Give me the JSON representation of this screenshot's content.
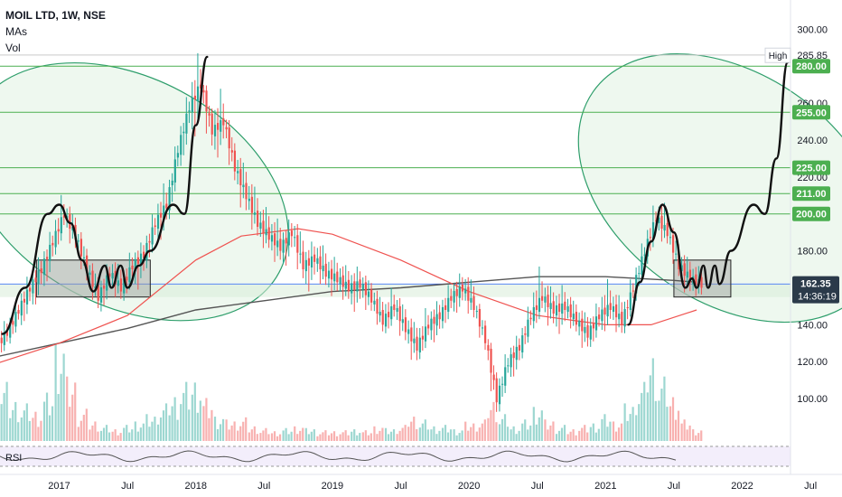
{
  "legend": {
    "symbol": "MOIL LTD, 1W, NSE",
    "indicator_mas": "MAs",
    "indicator_vol": "Vol"
  },
  "rsi_label": "RSI",
  "colors": {
    "up": "#26a69a",
    "down": "#ef5350",
    "ellipse_fill": "#e8f5e9",
    "ellipse_stroke": "#2e9e6b",
    "hline": "#4caf50",
    "ma_slow": "#555555",
    "ma_fast": "#ef5350",
    "blue_line": "#2962ff",
    "box_fill": "#9e9e9e",
    "price_tag_bg": "#2b3a4a"
  },
  "chart_data": {
    "type": "candlestick",
    "y_axis": {
      "range": [
        80,
        307
      ],
      "ticks": [
        "300.00",
        "260.00",
        "240.00",
        "220.00",
        "180.00",
        "140.00",
        "120.00",
        "100.00"
      ]
    },
    "x_axis": {
      "ticks": [
        "2017",
        "Jul",
        "2018",
        "Jul",
        "2019",
        "Jul",
        "2020",
        "Jul",
        "2021",
        "Jul",
        "2022",
        "Jul"
      ],
      "tick_dates": [
        "2017-01",
        "2017-07",
        "2018-01",
        "2018-07",
        "2019-01",
        "2019-07",
        "2020-01",
        "2020-07",
        "2021-01",
        "2021-07",
        "2022-01",
        "2022-07"
      ]
    },
    "horizontal_levels": [
      {
        "value": 280,
        "label": "280.00"
      },
      {
        "value": 255,
        "label": "255.00"
      },
      {
        "value": 225,
        "label": "225.00"
      },
      {
        "value": 211,
        "label": "211.00"
      },
      {
        "value": 200,
        "label": "200.00"
      }
    ],
    "high_marker": {
      "label": "High",
      "value": "285.85"
    },
    "last_price": {
      "value": "162.35",
      "countdown": "14:36:19"
    },
    "blue_level": 162,
    "consolidation_boxes": [
      {
        "date_start": "2016-11",
        "date_end": "2017-09",
        "low": 155,
        "high": 175
      },
      {
        "date_start": "2021-07",
        "date_end": "2021-12",
        "low": 155,
        "high": 175
      }
    ],
    "ellipses": [
      {
        "date_center": "2017-07",
        "date_half_width_months": 10,
        "price_center": 212,
        "price_half_height": 93,
        "tilt_deg": -62
      },
      {
        "date_center": "2021-12",
        "date_half_width_months": 10,
        "price_center": 214,
        "price_half_height": 91,
        "tilt_deg": -55
      }
    ],
    "pattern_paths": [
      [
        [
          "2016-08",
          135
        ],
        [
          "2016-10",
          160
        ],
        [
          "2016-12",
          200
        ],
        [
          "2017-01",
          205
        ],
        [
          "2017-02",
          195
        ],
        [
          "2017-03",
          175
        ],
        [
          "2017-04",
          158
        ],
        [
          "2017-05",
          172
        ],
        [
          "2017-05.6",
          160
        ],
        [
          "2017-06.4",
          172
        ],
        [
          "2017-07",
          160
        ],
        [
          "2017-08",
          172
        ],
        [
          "2017-09",
          180
        ],
        [
          "2017-11",
          205
        ],
        [
          "2017-12",
          200
        ],
        [
          "2018-01",
          248
        ],
        [
          "2018-02",
          285
        ]
      ],
      [
        [
          "2021-03",
          140
        ],
        [
          "2021-04",
          163
        ],
        [
          "2021-05",
          185
        ],
        [
          "2021-06",
          205
        ],
        [
          "2021-07",
          190
        ],
        [
          "2021-08",
          160
        ],
        [
          "2021-08.6",
          165
        ],
        [
          "2021-09",
          160
        ],
        [
          "2021-09.6",
          172
        ],
        [
          "2021-10",
          160
        ],
        [
          "2021-10.6",
          172
        ],
        [
          "2021-11",
          162
        ],
        [
          "2021-12",
          180
        ],
        [
          "2022-02",
          205
        ],
        [
          "2022-03",
          200
        ],
        [
          "2022-04",
          230
        ],
        [
          "2022-05",
          282
        ]
      ]
    ],
    "ma_slow": [
      [
        "2016-07",
        122
      ],
      [
        "2017-01",
        130
      ],
      [
        "2017-07",
        138
      ],
      [
        "2018-01",
        148
      ],
      [
        "2018-07",
        153
      ],
      [
        "2019-01",
        158
      ],
      [
        "2019-07",
        160
      ],
      [
        "2020-01",
        163
      ],
      [
        "2020-07",
        166
      ],
      [
        "2021-01",
        166
      ],
      [
        "2021-07",
        164
      ],
      [
        "2021-09",
        163
      ]
    ],
    "ma_fast": [
      [
        "2016-07",
        118
      ],
      [
        "2017-01",
        130
      ],
      [
        "2017-07",
        145
      ],
      [
        "2018-01",
        175
      ],
      [
        "2018-05",
        188
      ],
      [
        "2018-10",
        192
      ],
      [
        "2019-01",
        189
      ],
      [
        "2019-07",
        175
      ],
      [
        "2020-01",
        158
      ],
      [
        "2020-07",
        145
      ],
      [
        "2021-01",
        140
      ],
      [
        "2021-05",
        140
      ],
      [
        "2021-09",
        148
      ]
    ],
    "candles": [
      [
        "2016-07",
        125,
        130,
        121,
        128
      ],
      [
        "2016-08",
        128,
        140,
        125,
        136
      ],
      [
        "2016-09",
        136,
        150,
        133,
        148
      ],
      [
        "2016-10",
        148,
        165,
        140,
        160
      ],
      [
        "2016-11",
        160,
        175,
        150,
        170
      ],
      [
        "2016-12",
        170,
        190,
        160,
        185
      ],
      [
        "2017-01",
        185,
        210,
        180,
        200
      ],
      [
        "2017-02",
        200,
        205,
        182,
        188
      ],
      [
        "2017-03",
        188,
        192,
        165,
        170
      ],
      [
        "2017-04",
        170,
        175,
        150,
        155
      ],
      [
        "2017-05",
        155,
        172,
        148,
        168
      ],
      [
        "2017-06",
        168,
        175,
        155,
        160
      ],
      [
        "2017-07",
        160,
        178,
        155,
        172
      ],
      [
        "2017-08",
        172,
        182,
        160,
        178
      ],
      [
        "2017-09",
        178,
        200,
        172,
        195
      ],
      [
        "2017-10",
        195,
        215,
        185,
        205
      ],
      [
        "2017-11",
        205,
        240,
        198,
        235
      ],
      [
        "2017-12",
        235,
        265,
        225,
        258
      ],
      [
        "2018-01",
        258,
        286,
        240,
        270
      ],
      [
        "2018-02",
        270,
        272,
        235,
        245
      ],
      [
        "2018-03",
        245,
        265,
        232,
        250
      ],
      [
        "2018-04",
        250,
        255,
        218,
        225
      ],
      [
        "2018-05",
        225,
        235,
        200,
        210
      ],
      [
        "2018-06",
        210,
        222,
        188,
        195
      ],
      [
        "2018-07",
        195,
        205,
        182,
        188
      ],
      [
        "2018-08",
        188,
        198,
        175,
        182
      ],
      [
        "2018-09",
        182,
        195,
        172,
        190
      ],
      [
        "2018-10",
        190,
        200,
        165,
        172
      ],
      [
        "2018-11",
        172,
        182,
        160,
        176
      ],
      [
        "2018-12",
        176,
        185,
        162,
        168
      ],
      [
        "2019-01",
        168,
        175,
        158,
        165
      ],
      [
        "2019-02",
        165,
        172,
        155,
        160
      ],
      [
        "2019-03",
        160,
        168,
        150,
        162
      ],
      [
        "2019-04",
        162,
        166,
        148,
        154
      ],
      [
        "2019-05",
        154,
        160,
        138,
        142
      ],
      [
        "2019-06",
        142,
        158,
        138,
        150
      ],
      [
        "2019-07",
        150,
        156,
        132,
        138
      ],
      [
        "2019-08",
        138,
        145,
        120,
        128
      ],
      [
        "2019-09",
        128,
        148,
        124,
        140
      ],
      [
        "2019-10",
        140,
        150,
        132,
        145
      ],
      [
        "2019-11",
        145,
        160,
        140,
        155
      ],
      [
        "2019-12",
        155,
        165,
        148,
        160
      ],
      [
        "2020-01",
        160,
        168,
        145,
        150
      ],
      [
        "2020-02",
        150,
        152,
        128,
        132
      ],
      [
        "2020-03",
        132,
        135,
        92,
        100
      ],
      [
        "2020-04",
        100,
        125,
        95,
        120
      ],
      [
        "2020-05",
        120,
        132,
        112,
        128
      ],
      [
        "2020-06",
        128,
        150,
        125,
        145
      ],
      [
        "2020-07",
        145,
        170,
        140,
        155
      ],
      [
        "2020-08",
        155,
        162,
        140,
        148
      ],
      [
        "2020-09",
        148,
        158,
        138,
        150
      ],
      [
        "2020-10",
        150,
        155,
        138,
        142
      ],
      [
        "2020-11",
        142,
        148,
        128,
        135
      ],
      [
        "2020-12",
        135,
        150,
        130,
        145
      ],
      [
        "2021-01",
        145,
        162,
        138,
        150
      ],
      [
        "2021-02",
        150,
        158,
        136,
        142
      ],
      [
        "2021-03",
        142,
        165,
        138,
        160
      ],
      [
        "2021-04",
        160,
        185,
        155,
        180
      ],
      [
        "2021-05",
        180,
        205,
        175,
        198
      ],
      [
        "2021-06",
        198,
        208,
        185,
        190
      ],
      [
        "2021-07",
        190,
        195,
        168,
        172
      ],
      [
        "2021-08",
        172,
        178,
        158,
        165
      ],
      [
        "2021-09",
        165,
        170,
        158,
        162
      ]
    ],
    "volume": [
      [
        "2016-07",
        0.3,
        "down"
      ],
      [
        "2016-08",
        0.55,
        "up"
      ],
      [
        "2016-09",
        0.4,
        "up"
      ],
      [
        "2016-10",
        0.35,
        "up"
      ],
      [
        "2016-11",
        0.3,
        "down"
      ],
      [
        "2016-12",
        0.45,
        "up"
      ],
      [
        "2017-01",
        1.0,
        "up"
      ],
      [
        "2017-02",
        0.6,
        "down"
      ],
      [
        "2017-03",
        0.3,
        "down"
      ],
      [
        "2017-04",
        0.2,
        "down"
      ],
      [
        "2017-05",
        0.15,
        "up"
      ],
      [
        "2017-06",
        0.12,
        "down"
      ],
      [
        "2017-07",
        0.15,
        "up"
      ],
      [
        "2017-08",
        0.2,
        "up"
      ],
      [
        "2017-09",
        0.25,
        "up"
      ],
      [
        "2017-10",
        0.35,
        "up"
      ],
      [
        "2017-11",
        0.45,
        "up"
      ],
      [
        "2017-12",
        0.55,
        "up"
      ],
      [
        "2018-01",
        0.6,
        "up"
      ],
      [
        "2018-02",
        0.4,
        "down"
      ],
      [
        "2018-03",
        0.25,
        "up"
      ],
      [
        "2018-04",
        0.2,
        "down"
      ],
      [
        "2018-05",
        0.22,
        "down"
      ],
      [
        "2018-06",
        0.15,
        "down"
      ],
      [
        "2018-07",
        0.12,
        "down"
      ],
      [
        "2018-08",
        0.1,
        "down"
      ],
      [
        "2018-09",
        0.12,
        "up"
      ],
      [
        "2018-10",
        0.15,
        "down"
      ],
      [
        "2018-11",
        0.12,
        "up"
      ],
      [
        "2018-12",
        0.1,
        "down"
      ],
      [
        "2019-01",
        0.1,
        "down"
      ],
      [
        "2019-02",
        0.1,
        "down"
      ],
      [
        "2019-03",
        0.12,
        "up"
      ],
      [
        "2019-04",
        0.1,
        "down"
      ],
      [
        "2019-05",
        0.15,
        "down"
      ],
      [
        "2019-06",
        0.12,
        "up"
      ],
      [
        "2019-07",
        0.15,
        "down"
      ],
      [
        "2019-08",
        0.25,
        "down"
      ],
      [
        "2019-09",
        0.2,
        "up"
      ],
      [
        "2019-10",
        0.15,
        "up"
      ],
      [
        "2019-11",
        0.15,
        "up"
      ],
      [
        "2019-12",
        0.12,
        "up"
      ],
      [
        "2020-01",
        0.18,
        "down"
      ],
      [
        "2020-02",
        0.2,
        "down"
      ],
      [
        "2020-03",
        0.4,
        "down"
      ],
      [
        "2020-04",
        0.25,
        "up"
      ],
      [
        "2020-05",
        0.15,
        "up"
      ],
      [
        "2020-06",
        0.2,
        "up"
      ],
      [
        "2020-07",
        0.35,
        "up"
      ],
      [
        "2020-08",
        0.2,
        "down"
      ],
      [
        "2020-09",
        0.15,
        "up"
      ],
      [
        "2020-10",
        0.12,
        "down"
      ],
      [
        "2020-11",
        0.15,
        "down"
      ],
      [
        "2020-12",
        0.18,
        "up"
      ],
      [
        "2021-01",
        0.25,
        "up"
      ],
      [
        "2021-02",
        0.2,
        "down"
      ],
      [
        "2021-03",
        0.35,
        "up"
      ],
      [
        "2021-04",
        0.55,
        "up"
      ],
      [
        "2021-05",
        0.85,
        "up"
      ],
      [
        "2021-06",
        0.6,
        "up"
      ],
      [
        "2021-07",
        0.45,
        "down"
      ],
      [
        "2021-08",
        0.2,
        "down"
      ],
      [
        "2021-09",
        0.12,
        "down"
      ]
    ]
  }
}
